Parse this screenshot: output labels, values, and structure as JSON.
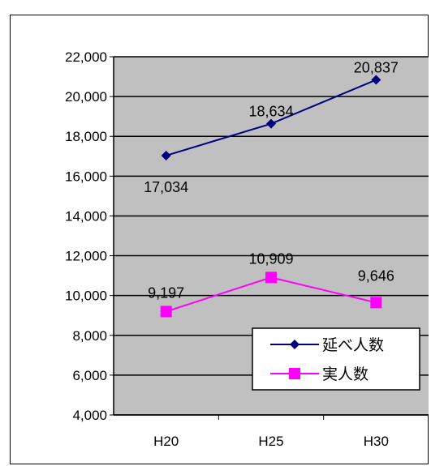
{
  "chart_data": {
    "type": "line",
    "categories": [
      "H20",
      "H25",
      "H30"
    ],
    "ylim": [
      4000,
      22000
    ],
    "ytick_step": 2000,
    "ytick_labels": [
      "4,000",
      "6,000",
      "8,000",
      "10,000",
      "12,000",
      "14,000",
      "16,000",
      "18,000",
      "20,000",
      "22,000"
    ],
    "grid": true,
    "legend_position": "bottom-right",
    "plot_background": "#c0c0c0",
    "series": [
      {
        "name": "延べ人数",
        "values": [
          17034,
          18634,
          20837
        ],
        "labels": [
          "17,034",
          "18,634",
          "20,837"
        ],
        "color": "#000080",
        "marker": "diamond"
      },
      {
        "name": "実人数",
        "values": [
          9197,
          10909,
          9646
        ],
        "labels": [
          "9,197",
          "10,909",
          "9,646"
        ],
        "color": "#ff00ff",
        "marker": "square"
      }
    ]
  }
}
